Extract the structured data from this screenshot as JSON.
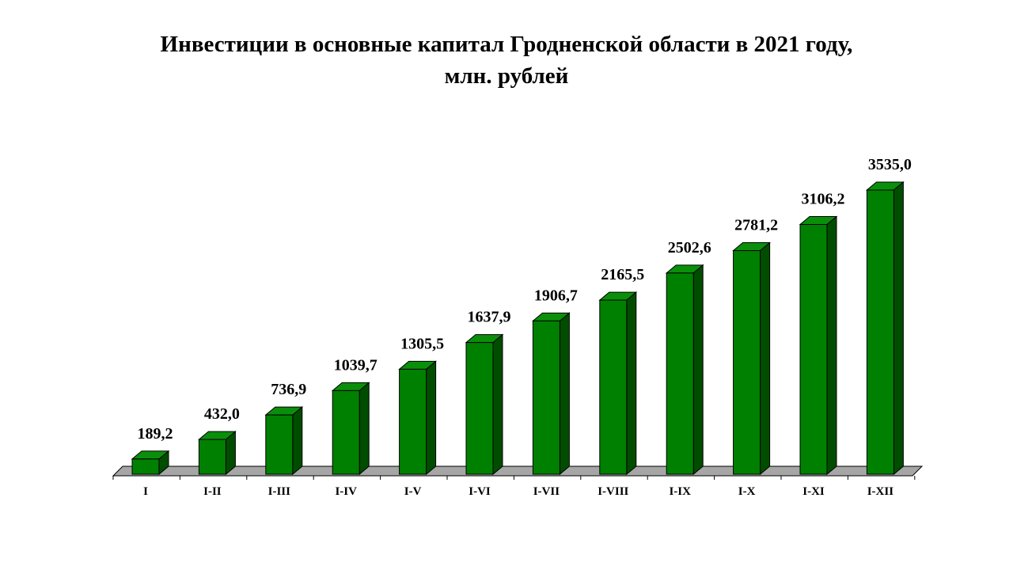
{
  "title_line1": "Инвестиции в основные капитал Гродненской области в 2021 году,",
  "title_line2": "млн. рублей",
  "colors": {
    "bar_front": "#008000",
    "bar_top": "#0a8f0a",
    "bar_side": "#004d00",
    "floor": "#a6a6a6"
  },
  "chart_data": {
    "type": "bar",
    "title": "Инвестиции в основные капитал Гродненской области в 2021 году, млн. рублей",
    "categories": [
      "I",
      "I-II",
      "I-III",
      "I-IV",
      "I-V",
      "I-VI",
      "I-VII",
      "I-VIII",
      "I-IX",
      "I-X",
      "I-XI",
      "I-XII"
    ],
    "values": [
      189.2,
      432.0,
      736.9,
      1039.7,
      1305.5,
      1637.9,
      1906.7,
      2165.5,
      2502.6,
      2781.2,
      3106.2,
      3535.0
    ],
    "value_labels": [
      "189,2",
      "432,0",
      "736,9",
      "1039,7",
      "1305,5",
      "1637,9",
      "1906,7",
      "2165,5",
      "2502,6",
      "2781,2",
      "3106,2",
      "3535,0"
    ],
    "ylim": [
      0,
      3535.0
    ],
    "grid": false,
    "legend": "none",
    "style": "3d-columns"
  }
}
